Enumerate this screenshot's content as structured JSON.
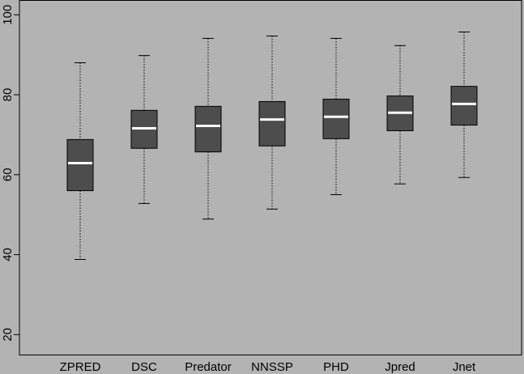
{
  "chart_data": {
    "type": "box",
    "categories": [
      "ZPRED",
      "DSC",
      "Predator",
      "NNSSP",
      "PHD",
      "Jpred",
      "Jnet"
    ],
    "boxes": [
      {
        "low": 38.8,
        "q1": 56.0,
        "median": 62.9,
        "q3": 68.8,
        "high": 88.0
      },
      {
        "low": 52.8,
        "q1": 66.6,
        "median": 71.6,
        "q3": 76.1,
        "high": 89.8
      },
      {
        "low": 48.9,
        "q1": 65.7,
        "median": 72.2,
        "q3": 77.1,
        "high": 94.1
      },
      {
        "low": 51.4,
        "q1": 67.2,
        "median": 73.8,
        "q3": 78.3,
        "high": 94.7
      },
      {
        "low": 55.0,
        "q1": 69.0,
        "median": 74.5,
        "q3": 78.9,
        "high": 94.1
      },
      {
        "low": 57.7,
        "q1": 71.0,
        "median": 75.5,
        "q3": 79.7,
        "high": 92.3
      },
      {
        "low": 59.3,
        "q1": 72.4,
        "median": 77.7,
        "q3": 82.1,
        "high": 95.7
      }
    ],
    "box_color": "#4d4d4d",
    "median_color": "#ffffff",
    "ylim": [
      14.9,
      103.6
    ],
    "yticks": [
      20,
      40,
      60,
      80,
      100
    ]
  }
}
